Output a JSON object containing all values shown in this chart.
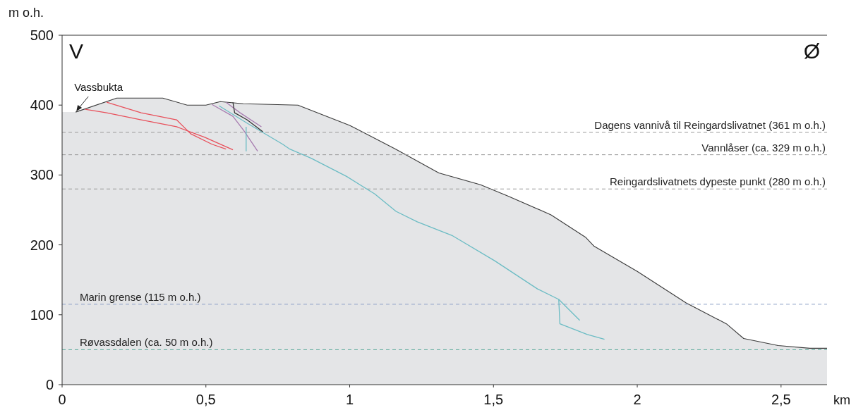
{
  "chart_data": {
    "type": "line",
    "xlabel": "km",
    "ylabel": "m o.h.",
    "xlim": [
      0,
      2.66
    ],
    "ylim": [
      0,
      500
    ],
    "xticks": [
      0,
      {
        "value": 0.5,
        "label": "0,5"
      },
      1,
      {
        "value": 1.5,
        "label": "1,5"
      },
      2,
      {
        "value": 2.5,
        "label": "2,5"
      }
    ],
    "yticks": [
      0,
      100,
      200,
      300,
      400,
      500
    ],
    "series": [
      {
        "type": "area",
        "color": "#e4e5e7",
        "x": [
          0,
          0.047,
          0.19,
          0.35,
          0.435,
          0.5,
          0.55,
          0.63,
          0.82,
          1.0,
          1.16,
          1.31,
          1.455,
          1.55,
          1.7,
          1.82,
          1.85,
          2.0,
          2.17,
          2.31,
          2.37,
          2.49,
          2.6,
          2.66
        ],
        "values": [
          390,
          390,
          410,
          410,
          400,
          400,
          405,
          402,
          400,
          371,
          337,
          303,
          286,
          270,
          243,
          211,
          198,
          162,
          117,
          87,
          66,
          56,
          52,
          52
        ]
      },
      {
        "color": "#e8505b",
        "x": [
          0.08,
          0.155,
          0.275,
          0.398,
          0.496,
          0.594
        ],
        "values": [
          394,
          389,
          379,
          369,
          354,
          336
        ]
      },
      {
        "color": "#e8505b",
        "x": [
          0.155,
          0.275,
          0.398,
          0.447,
          0.521,
          0.57
        ],
        "values": [
          404,
          389,
          379,
          359,
          344,
          337
        ]
      },
      {
        "color": "#a77cb0",
        "x": [
          0.521,
          0.594,
          0.631,
          0.68
        ],
        "values": [
          401,
          384,
          364,
          334
        ]
      },
      {
        "color": "#a77cb0",
        "x": [
          0.57,
          0.619,
          0.693
        ],
        "values": [
          404,
          389,
          369
        ]
      },
      {
        "color": "#6bbcc4",
        "x": [
          0.546,
          0.644,
          0.767,
          0.792,
          0.866,
          0.989,
          1.087,
          1.161,
          1.235,
          1.358,
          1.505,
          1.653,
          1.727,
          1.731,
          1.825,
          1.886
        ],
        "values": [
          399,
          374,
          344,
          337,
          324,
          298,
          273,
          248,
          233,
          213,
          177,
          137,
          122,
          87,
          72,
          65
        ]
      },
      {
        "color": "#6bbcc4",
        "x": [
          1.727,
          1.8
        ],
        "values": [
          122,
          92
        ]
      },
      {
        "color": "#6bbcc4",
        "x": [
          0.64,
          0.64
        ],
        "values": [
          369,
          334
        ]
      },
      {
        "color": "#333333",
        "x": [
          0.594,
          0.6,
          0.643,
          0.698
        ],
        "values": [
          404,
          389,
          379,
          362
        ]
      }
    ],
    "ref_lines": [
      {
        "axis": "y",
        "value": 361,
        "label": "Dagens vannivå til Reingardslivatnet (361 m o.h.)",
        "color": "#9a9a9a",
        "line_style": "dashed"
      },
      {
        "axis": "y",
        "value": 329,
        "label": "Vannlåser (ca. 329 m o.h.)",
        "color": "#9a9a9a",
        "line_style": "dashed"
      },
      {
        "axis": "y",
        "value": 280,
        "label": "Reingardslivatnets dypeste punkt (280 m o.h.)",
        "color": "#9a9a9a",
        "line_style": "dashed"
      },
      {
        "axis": "y",
        "value": 115,
        "label": "Marin grense (115 m o.h.)",
        "color": "#8fa3c8",
        "line_style": "dashed"
      },
      {
        "axis": "y",
        "value": 50,
        "label": "Røvassdalen (ca. 50 m o.h.)",
        "color": "#5aa89a",
        "line_style": "dashed"
      }
    ],
    "annotations": [
      "V",
      "Ø",
      {
        "text": "Vassbukta",
        "x": 0.047,
        "y": 390
      }
    ],
    "grid": false
  }
}
